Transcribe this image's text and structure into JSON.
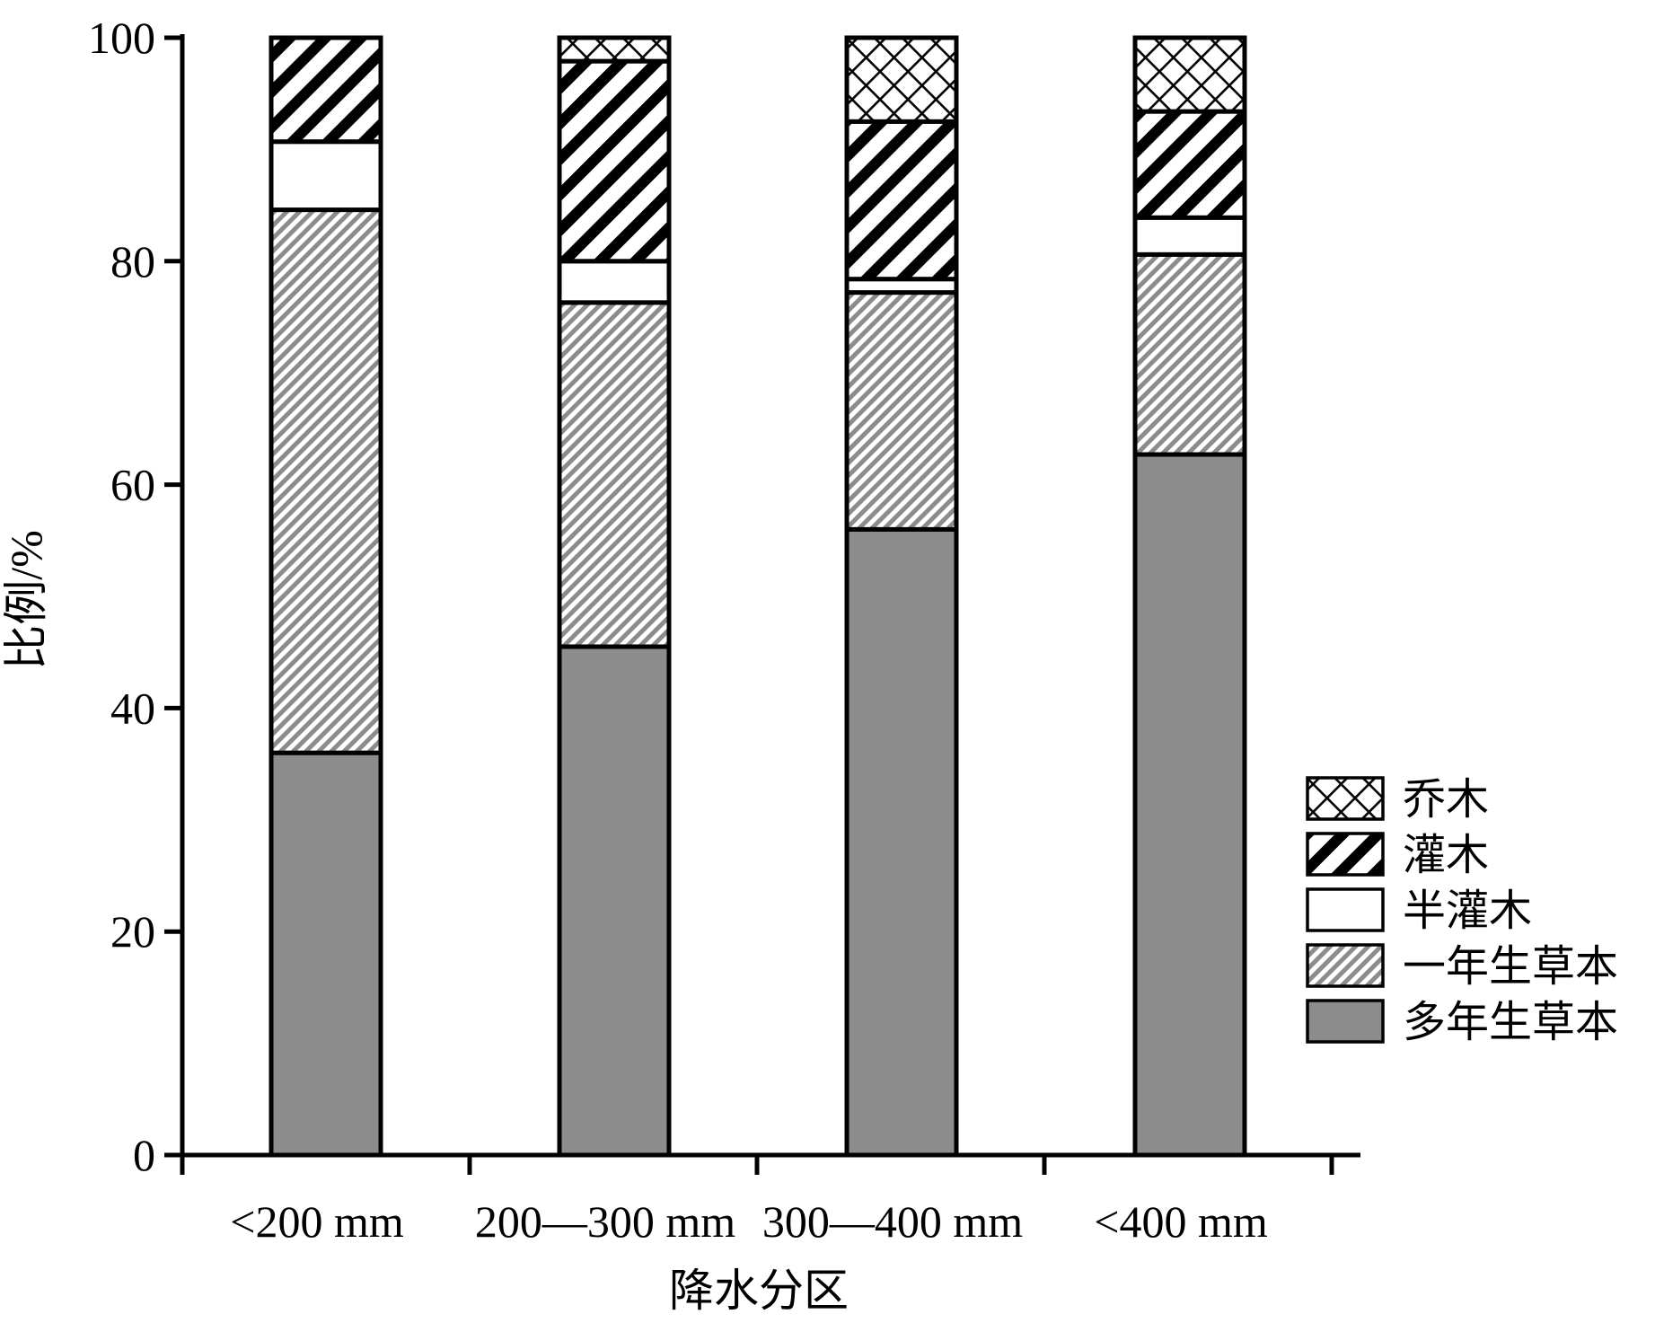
{
  "chart_data": {
    "type": "bar",
    "stacked": true,
    "title": "",
    "xlabel": "降水分区",
    "ylabel": "比例/%",
    "ylim": [
      0,
      100
    ],
    "yticks": [
      0,
      20,
      40,
      60,
      80,
      100
    ],
    "categories": [
      "<200 mm",
      "200—300 mm",
      "300—400 mm",
      "<400 mm"
    ],
    "series": [
      {
        "name": "多年生草本",
        "values": [
          36,
          45.5,
          56,
          62.7
        ],
        "pattern": "solid",
        "color": "#8c8c8c"
      },
      {
        "name": "一年生草本",
        "values": [
          48.6,
          30.8,
          21.2,
          17.9
        ],
        "pattern": "fine-diagonal",
        "color": "#8c8c8c"
      },
      {
        "name": "半灌木",
        "values": [
          6.1,
          3.7,
          1.2,
          3.3
        ],
        "pattern": "white",
        "color": "#ffffff"
      },
      {
        "name": "灌木",
        "values": [
          9.3,
          17.9,
          14.1,
          9.5
        ],
        "pattern": "bold-diagonal",
        "color": "#000000"
      },
      {
        "name": "乔木",
        "values": [
          0,
          2.1,
          7.5,
          6.6
        ],
        "pattern": "crosshatch",
        "color": "#000000"
      }
    ],
    "legend_order": [
      "乔木",
      "灌木",
      "半灌木",
      "一年生草本",
      "多年生草本"
    ],
    "legend_position": "right-middle",
    "grid": false
  }
}
